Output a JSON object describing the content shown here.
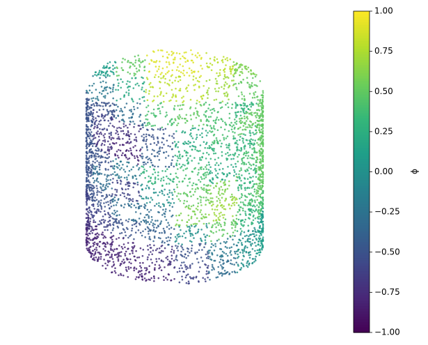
{
  "chart_data": {
    "type": "scatter3d",
    "colormap": "viridis",
    "clim": [
      -1,
      1
    ],
    "cticks": [
      {
        "value": -1,
        "label": "−1.00"
      },
      {
        "value": -0.75,
        "label": "−0.75"
      },
      {
        "value": -0.5,
        "label": "−0.50"
      },
      {
        "value": -0.25,
        "label": "−0.25"
      },
      {
        "value": 0,
        "label": "0.00"
      },
      {
        "value": 0.25,
        "label": "0.25"
      },
      {
        "value": 0.5,
        "label": "0.50"
      },
      {
        "value": 0.75,
        "label": "0.75"
      },
      {
        "value": 1,
        "label": "1.00"
      }
    ],
    "colorbar_label": "ϕ",
    "side": {
      "values": [
        [
          -0.5,
          -0.6,
          -0.7,
          -0.5,
          0.2,
          0.4,
          0.5,
          0.5
        ],
        [
          -0.5,
          -0.7,
          -0.8,
          -0.4,
          0.3,
          0.3,
          0.3,
          0.5
        ],
        [
          -0.5,
          -0.5,
          -0.2,
          0.3,
          0.4,
          0.2,
          0.4,
          0.5
        ],
        [
          -0.5,
          -0.3,
          -0.6,
          0.0,
          0.5,
          0.6,
          0.3,
          0.5
        ],
        [
          -0.5,
          -0.5,
          -0.3,
          -0.3,
          0.6,
          0.7,
          0.4,
          0.5
        ],
        [
          -0.6,
          -0.6,
          -0.5,
          -0.4,
          0.0,
          0.5,
          0.3,
          0.4
        ],
        [
          -0.7,
          -0.8,
          -0.8,
          -0.7,
          -0.5,
          -0.2,
          0.0,
          0.1
        ],
        [
          -0.8,
          -0.8,
          -0.8,
          -0.8,
          -0.6,
          -0.3,
          0.0,
          0.1
        ]
      ]
    },
    "top": {
      "values": [
        [
          0.1,
          0.5,
          0.9,
          0.9,
          0.8,
          0.6
        ],
        [
          -0.2,
          0.2,
          0.8,
          0.8,
          0.7,
          0.5
        ],
        [
          -0.5,
          -0.3,
          0.4,
          0.5,
          0.4,
          0.3
        ]
      ]
    }
  }
}
